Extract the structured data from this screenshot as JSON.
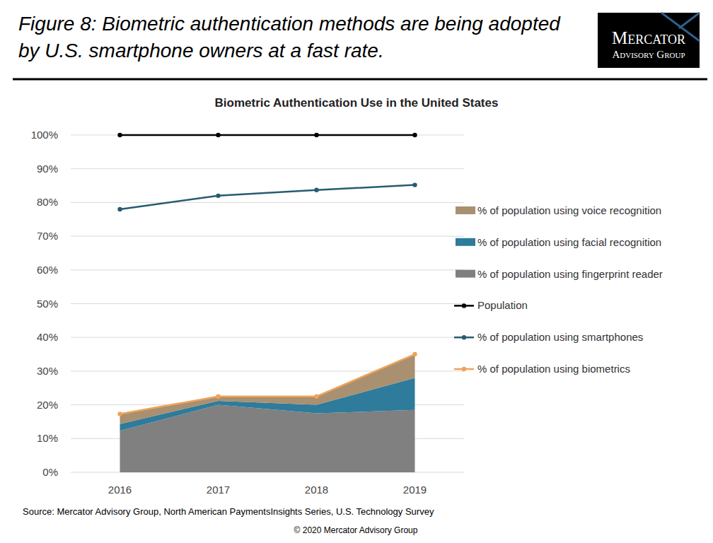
{
  "page": {
    "caption": "Figure 8: Biometric authentication methods are being adopted by U.S. smartphone owners at a fast rate.",
    "logo": [
      "Mercator",
      "Advisory Group"
    ],
    "source": "Source: Mercator Advisory Group, North American PaymentsInsights Series, U.S. Technology Survey",
    "copyright": "© 2020 Mercator Advisory Group"
  },
  "chart_data": {
    "type": "area",
    "title": "Biometric Authentication Use in the United States",
    "categories": [
      "2016",
      "2017",
      "2018",
      "2019"
    ],
    "series": [
      {
        "name": "% of population using voice recognition",
        "type": "area",
        "color": "#a89070",
        "values": [
          3,
          1.3,
          2.5,
          7
        ]
      },
      {
        "name": "% of population using facial recognition",
        "type": "area",
        "color": "#2f7b9c",
        "values": [
          2,
          1.2,
          2.5,
          9.5
        ]
      },
      {
        "name": "% of population using fingerprint reader",
        "type": "area",
        "color": "#808080",
        "values": [
          12.3,
          20,
          17.5,
          18.5
        ]
      },
      {
        "name": "Population",
        "type": "line",
        "color": "#000000",
        "marker": "circle",
        "values": [
          100,
          100,
          100,
          100
        ]
      },
      {
        "name": "% of population using smartphones",
        "type": "line",
        "color": "#265c70",
        "marker": "circle",
        "values": [
          78,
          82,
          83.7,
          85.2
        ]
      },
      {
        "name": "% of population using biometrics",
        "type": "line",
        "color": "#eda35a",
        "marker": "circle",
        "values": [
          17.3,
          22.5,
          22.5,
          35
        ]
      }
    ],
    "ylim": [
      0,
      100
    ],
    "yticks": [
      {
        "value": 0,
        "label": "0%"
      },
      {
        "value": 10,
        "label": "10%"
      },
      {
        "value": 20,
        "label": "20%"
      },
      {
        "value": 30,
        "label": "30%"
      },
      {
        "value": 40,
        "label": "40%"
      },
      {
        "value": 50,
        "label": "50%"
      },
      {
        "value": 60,
        "label": "60%"
      },
      {
        "value": 70,
        "label": "70%"
      },
      {
        "value": 80,
        "label": "80%"
      },
      {
        "value": 90,
        "label": "90%"
      },
      {
        "value": 100,
        "label": "100%"
      }
    ],
    "stacked": true,
    "grid": true,
    "legend": "right"
  }
}
